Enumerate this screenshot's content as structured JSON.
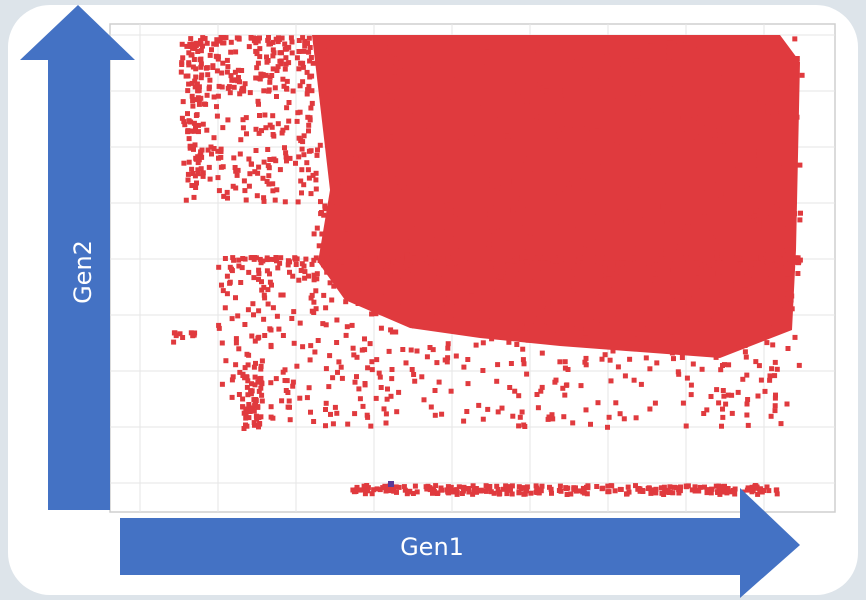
{
  "x_arrow": {
    "label": "Gen1"
  },
  "y_arrow": {
    "label": "Gen2"
  }
}
